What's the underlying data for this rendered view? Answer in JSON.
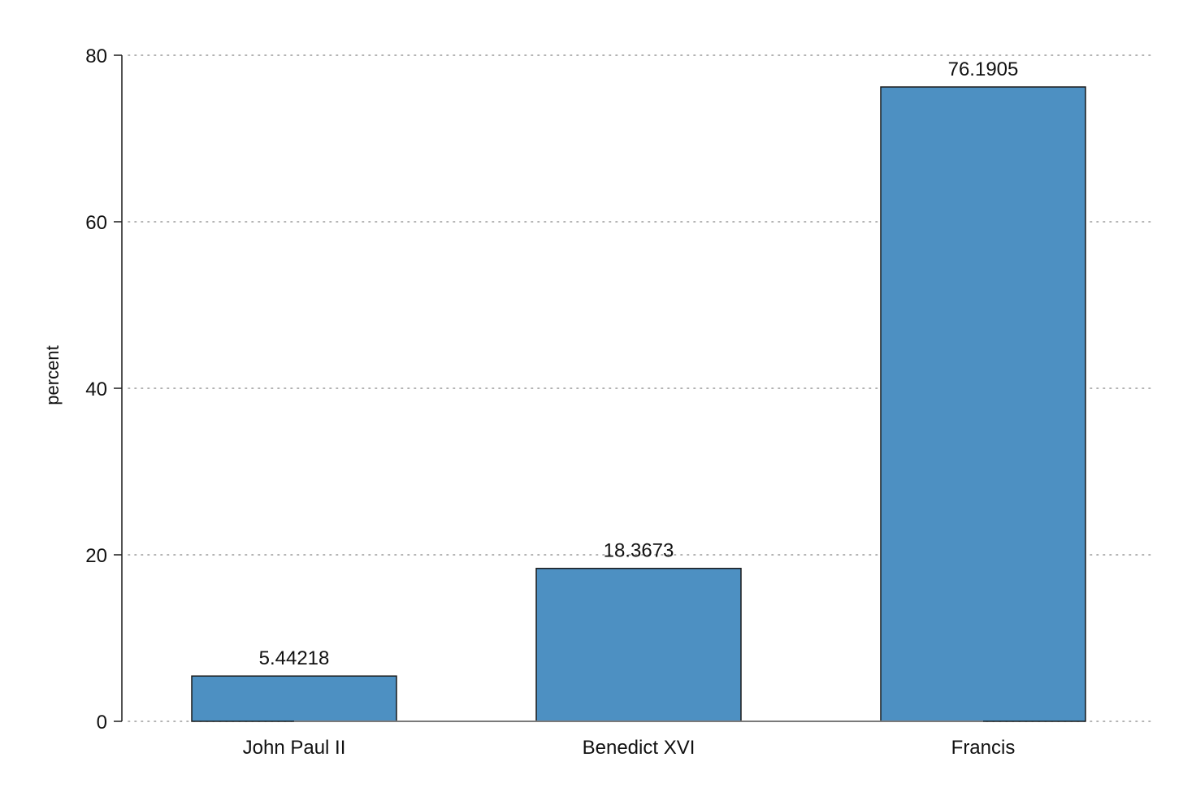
{
  "chart_data": {
    "type": "bar",
    "title": "",
    "xlabel": "",
    "ylabel": "percent",
    "categories": [
      "John Paul II",
      "Benedict XVI",
      "Francis"
    ],
    "values": [
      5.44218,
      18.3673,
      76.1905
    ],
    "data_labels": [
      "5.44218",
      "18.3673",
      "76.1905"
    ],
    "ylim": [
      0,
      80
    ],
    "yticks": [
      0,
      20,
      40,
      60,
      80
    ],
    "grid": "horizontal dotted",
    "legend": "none",
    "colors": {
      "bar_fill": "#4d90c2",
      "bar_stroke": "#1a1a1a",
      "grid": "#9a9a9a",
      "axis": "#1a1a1a",
      "baseline": "#7a7a7a"
    }
  }
}
